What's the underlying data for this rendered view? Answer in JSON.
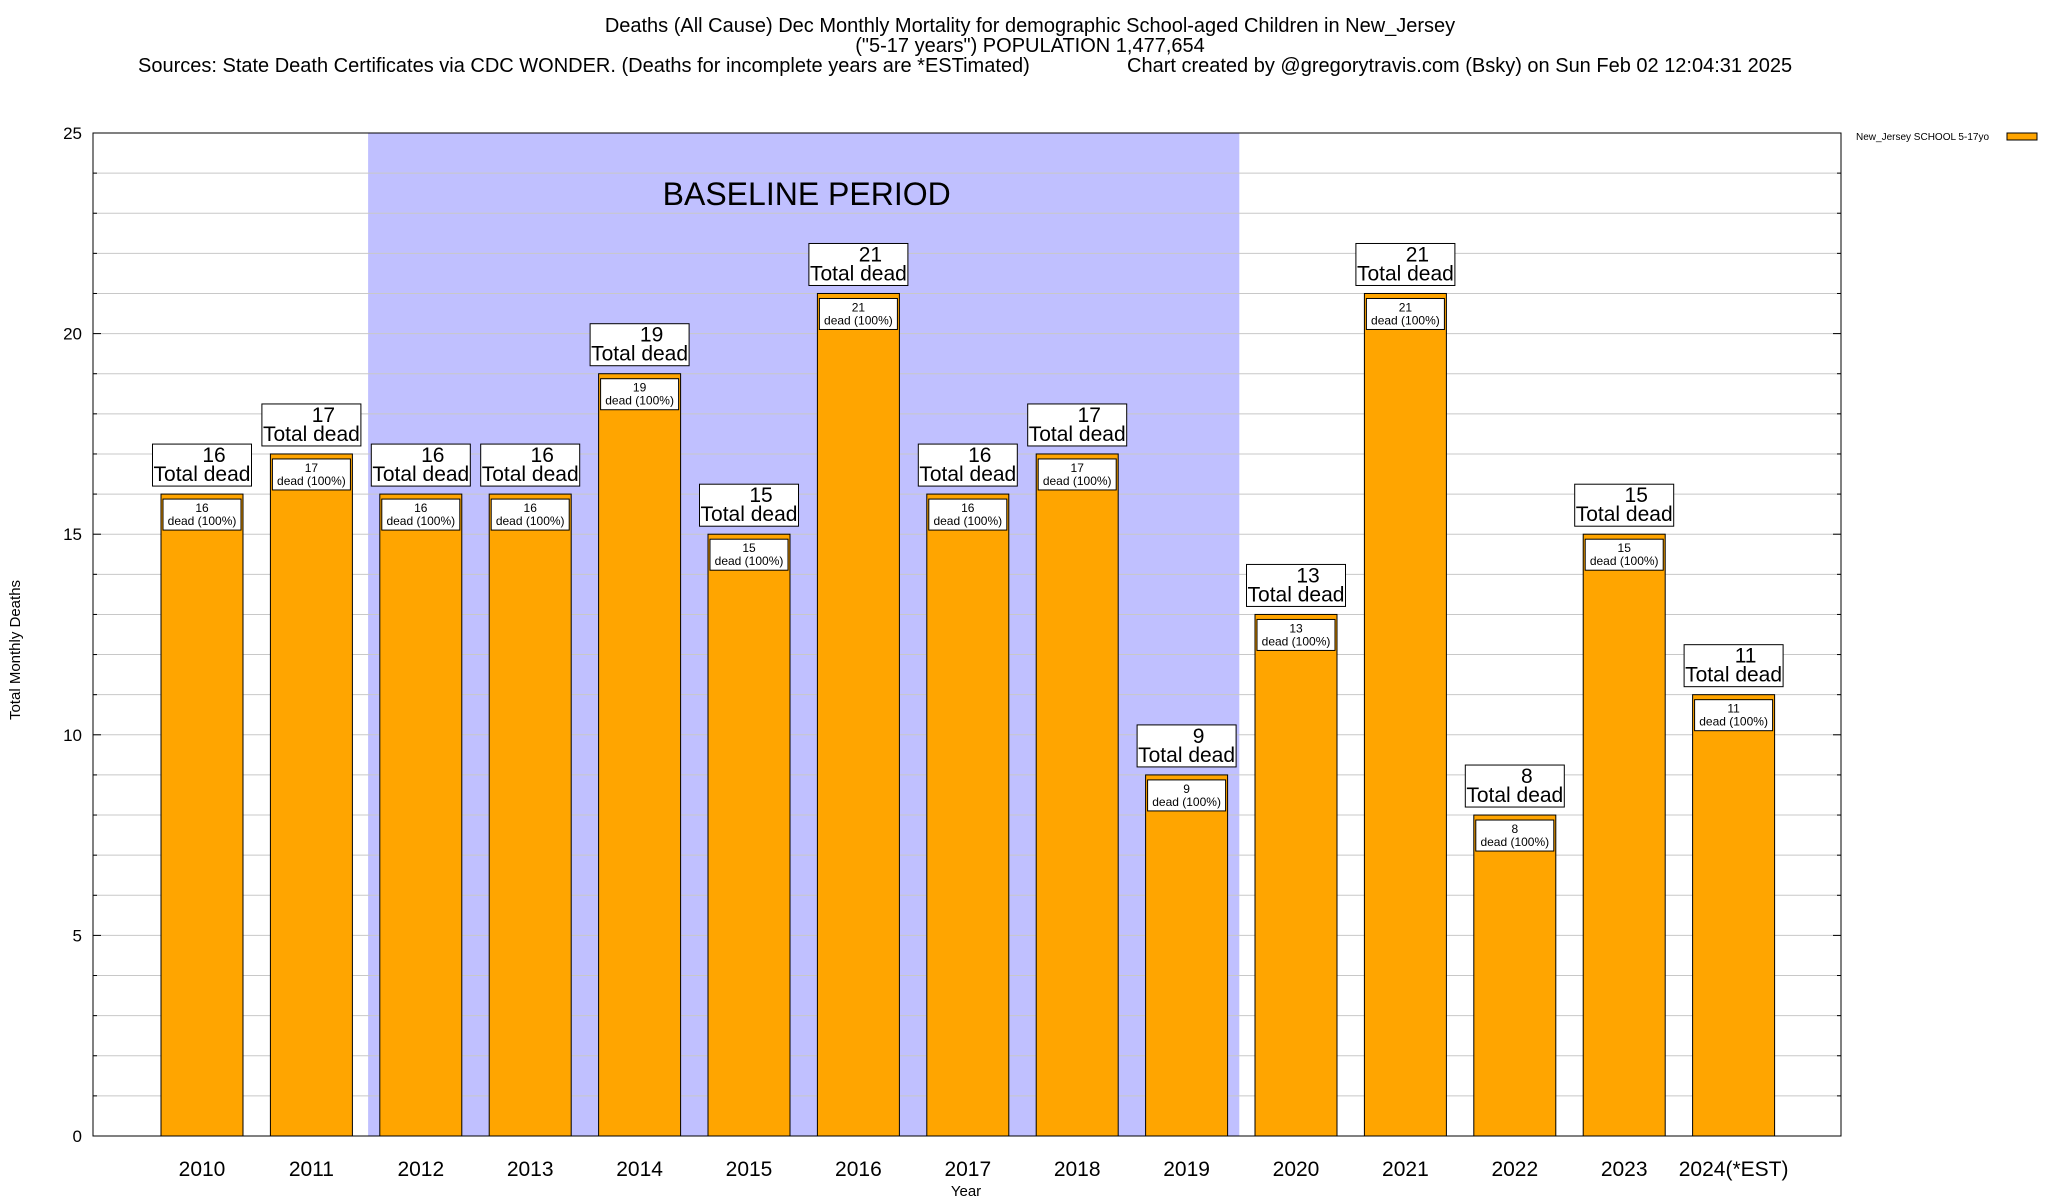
{
  "chart_data": {
    "type": "bar",
    "title_lines": [
      "Deaths (All Cause) Dec Monthly Mortality for demographic School-aged Children in New_Jersey",
      "(\"5-17 years\") POPULATION 1,477,654"
    ],
    "sources": "Sources: State Death Certificates via CDC WONDER. (Deaths for incomplete years are *ESTimated)",
    "credit": "Chart created by @gregorytravis.com (Bsky) on Sun Feb 02 12:04:31 2025",
    "xlabel": "Year",
    "ylabel": "Total Monthly Deaths",
    "ylim": [
      0,
      25
    ],
    "yticks": [
      0,
      5,
      10,
      15,
      20,
      25
    ],
    "minor_grid_step": 1,
    "categories": [
      "2010",
      "2011",
      "2012",
      "2013",
      "2014",
      "2015",
      "2016",
      "2017",
      "2018",
      "2019",
      "2020",
      "2021",
      "2022",
      "2023",
      "2024(*EST)"
    ],
    "series": [
      {
        "name": "New_Jersey SCHOOL 5-17yo",
        "color": "#ffa500",
        "values": [
          16,
          17,
          16,
          16,
          19,
          15,
          21,
          16,
          17,
          9,
          13,
          21,
          8,
          15,
          11
        ]
      }
    ],
    "total_label_text": "Total dead",
    "inner_label_text": "dead (100%)",
    "baseline": {
      "label": "BASELINE PERIOD",
      "start": "2012",
      "end": "2019",
      "color": "#c0c0ff"
    },
    "legend_position": "top-right",
    "grid": true
  }
}
